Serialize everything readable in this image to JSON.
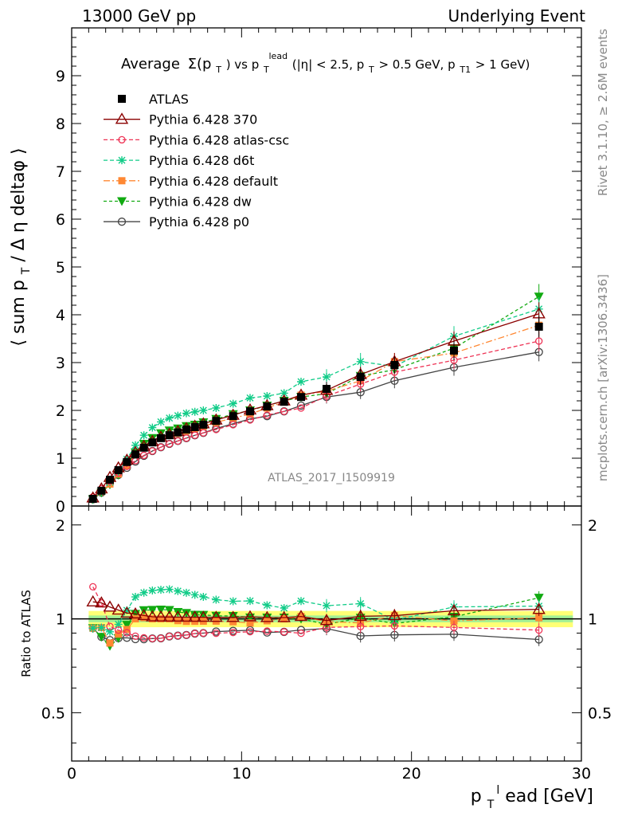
{
  "header": {
    "left": "13000 GeV pp",
    "right": "Underlying Event"
  },
  "plot_title": {
    "prefix": "Average",
    "sigma": "Σ(p",
    "sigma_sub": "T",
    "vs": ") vs p",
    "vs_sub": "T",
    "vs_sup": "lead",
    "cuts_a": " (|η| < 2.5, p",
    "cuts_sub1": "T",
    "cuts_b": " > 0.5 GeV, p",
    "cuts_sub2": "T1",
    "cuts_c": " > 1 GeV)"
  },
  "ylabel_main": "⟨ sum p  / Δ η deltaφ ⟩",
  "ylabel_main_parts": {
    "a": "⟨ sum p",
    "sub": "T",
    "b": " / Δ η deltaφ ⟩"
  },
  "ylabel_ratio": "Ratio to ATLAS",
  "xlabel_parts": {
    "a": "p",
    "sub": "T",
    "sup": "l",
    "b": "ead [GeV]"
  },
  "watermark": "ATLAS_2017_I1509919",
  "side_text": {
    "rivet": "Rivet 3.1.10, ≥ 2.6M events",
    "mcplots": "mcplots.cern.ch [arXiv:1306.3436]"
  },
  "main_y_ticks": [
    "0",
    "1",
    "2",
    "3",
    "4",
    "5",
    "6",
    "7",
    "8",
    "9"
  ],
  "ratio_y_ticks": [
    "0.5",
    "1",
    "2"
  ],
  "x_ticks": [
    "0",
    "10",
    "20",
    "30"
  ],
  "colors": {
    "atlas": "#000000",
    "p370": "#8b0000",
    "atlascsc": "#ee3355",
    "d6t": "#11cc88",
    "default": "#ff8833",
    "dw": "#11aa11",
    "p0": "#444444",
    "band": "#ffff66",
    "band_inner": "#99ee99"
  },
  "chart_data": {
    "type": "line",
    "x": [
      1.25,
      1.75,
      2.25,
      2.75,
      3.25,
      3.75,
      4.25,
      4.75,
      5.25,
      5.75,
      6.25,
      6.75,
      7.25,
      7.75,
      8.5,
      9.5,
      10.5,
      11.5,
      12.5,
      13.5,
      15.0,
      17.0,
      19.0,
      22.5,
      27.5
    ],
    "xlim": [
      0,
      30
    ],
    "ylim": [
      0,
      10
    ],
    "ratio_ylim": [
      0.35,
      2.3
    ],
    "ratio_log_scale": true,
    "series": [
      {
        "name": "ATLAS",
        "key": "atlas",
        "values": [
          0.15,
          0.32,
          0.55,
          0.75,
          0.92,
          1.08,
          1.22,
          1.33,
          1.42,
          1.48,
          1.54,
          1.6,
          1.65,
          1.7,
          1.78,
          1.88,
          1.98,
          2.08,
          2.18,
          2.28,
          2.45,
          2.7,
          2.95,
          3.25,
          3.75
        ]
      },
      {
        "name": "Pythia 6.428 370",
        "key": "p370",
        "values": [
          0.17,
          0.36,
          0.6,
          0.8,
          0.96,
          1.12,
          1.25,
          1.35,
          1.44,
          1.5,
          1.56,
          1.62,
          1.67,
          1.72,
          1.8,
          1.9,
          2.01,
          2.1,
          2.2,
          2.32,
          2.42,
          2.75,
          3.02,
          3.45,
          4.02
        ]
      },
      {
        "name": "Pythia 6.428 atlas-csc",
        "key": "atlascsc",
        "values": [
          0.19,
          0.36,
          0.52,
          0.69,
          0.83,
          0.95,
          1.06,
          1.15,
          1.23,
          1.3,
          1.36,
          1.42,
          1.48,
          1.53,
          1.6,
          1.7,
          1.8,
          1.9,
          1.98,
          2.05,
          2.3,
          2.55,
          2.8,
          3.05,
          3.45
        ]
      },
      {
        "name": "Pythia 6.428 d6t",
        "key": "d6t",
        "values": [
          0.14,
          0.3,
          0.5,
          0.72,
          0.98,
          1.27,
          1.48,
          1.64,
          1.76,
          1.84,
          1.89,
          1.94,
          1.97,
          2.0,
          2.05,
          2.14,
          2.26,
          2.3,
          2.36,
          2.6,
          2.7,
          3.02,
          2.92,
          3.55,
          4.12
        ]
      },
      {
        "name": "Pythia 6.428 default",
        "key": "default",
        "values": [
          0.14,
          0.3,
          0.46,
          0.67,
          0.85,
          1.08,
          1.23,
          1.33,
          1.42,
          1.48,
          1.52,
          1.57,
          1.62,
          1.67,
          1.75,
          1.84,
          1.92,
          2.05,
          2.18,
          2.32,
          2.4,
          2.62,
          3.02,
          3.2,
          3.78
        ]
      },
      {
        "name": "Pythia 6.428 dw",
        "key": "dw",
        "values": [
          0.14,
          0.28,
          0.45,
          0.65,
          0.88,
          1.12,
          1.3,
          1.42,
          1.52,
          1.58,
          1.62,
          1.67,
          1.7,
          1.75,
          1.82,
          1.92,
          2.0,
          2.1,
          2.2,
          2.28,
          2.35,
          2.72,
          2.85,
          3.3,
          4.38
        ]
      },
      {
        "name": "Pythia 6.428 p0",
        "key": "p0",
        "values": [
          0.14,
          0.28,
          0.47,
          0.65,
          0.8,
          0.93,
          1.05,
          1.15,
          1.23,
          1.3,
          1.36,
          1.42,
          1.48,
          1.53,
          1.62,
          1.72,
          1.82,
          1.88,
          1.98,
          2.1,
          2.28,
          2.38,
          2.62,
          2.9,
          3.22
        ]
      }
    ]
  }
}
